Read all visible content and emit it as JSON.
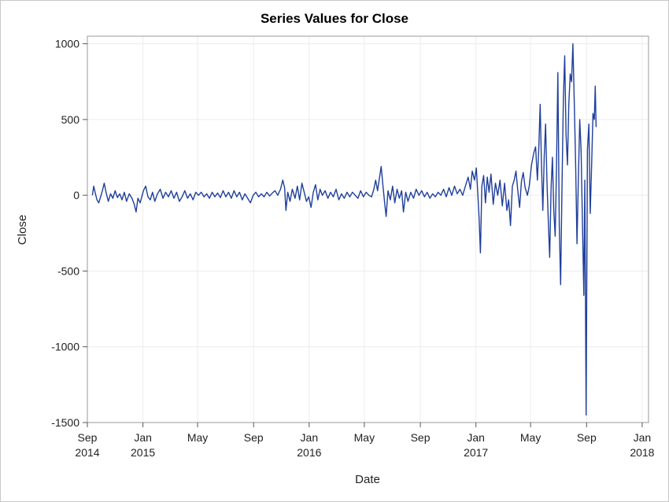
{
  "chart_data": {
    "type": "line",
    "title": "Series Values for Close",
    "xlabel": "Date",
    "ylabel": "Close",
    "ylim": [
      -1500,
      1050
    ],
    "xlim": [
      "2014-09-01",
      "2018-01-15"
    ],
    "grid": true,
    "yticks": [
      1000,
      500,
      0,
      -500,
      -1000,
      -1500
    ],
    "xticks": [
      {
        "date": "2014-09-01",
        "label": "Sep",
        "sub": "2014"
      },
      {
        "date": "2015-01-01",
        "label": "Jan",
        "sub": "2015"
      },
      {
        "date": "2015-05-01",
        "label": "May",
        "sub": ""
      },
      {
        "date": "2015-09-01",
        "label": "Sep",
        "sub": ""
      },
      {
        "date": "2016-01-01",
        "label": "Jan",
        "sub": "2016"
      },
      {
        "date": "2016-05-01",
        "label": "May",
        "sub": ""
      },
      {
        "date": "2016-09-01",
        "label": "Sep",
        "sub": ""
      },
      {
        "date": "2017-01-01",
        "label": "Jan",
        "sub": "2017"
      },
      {
        "date": "2017-05-01",
        "label": "May",
        "sub": ""
      },
      {
        "date": "2017-09-01",
        "label": "Sep",
        "sub": ""
      },
      {
        "date": "2018-01-01",
        "label": "Jan",
        "sub": "2018"
      }
    ],
    "series": [
      {
        "color": "#1f3f9a",
        "points": [
          [
            "2014-09-12",
            0
          ],
          [
            "2014-09-15",
            60
          ],
          [
            "2014-09-18",
            20
          ],
          [
            "2014-09-22",
            -30
          ],
          [
            "2014-09-26",
            -50
          ],
          [
            "2014-09-30",
            -10
          ],
          [
            "2014-10-04",
            30
          ],
          [
            "2014-10-08",
            80
          ],
          [
            "2014-10-12",
            20
          ],
          [
            "2014-10-17",
            -40
          ],
          [
            "2014-10-22",
            10
          ],
          [
            "2014-10-27",
            -20
          ],
          [
            "2014-11-01",
            30
          ],
          [
            "2014-11-06",
            -15
          ],
          [
            "2014-11-11",
            10
          ],
          [
            "2014-11-16",
            -30
          ],
          [
            "2014-11-21",
            20
          ],
          [
            "2014-11-26",
            -40
          ],
          [
            "2014-12-02",
            10
          ],
          [
            "2014-12-08",
            -20
          ],
          [
            "2014-12-13",
            -60
          ],
          [
            "2014-12-17",
            -110
          ],
          [
            "2014-12-21",
            -20
          ],
          [
            "2014-12-26",
            -50
          ],
          [
            "2015-01-02",
            30
          ],
          [
            "2015-01-07",
            60
          ],
          [
            "2015-01-12",
            -10
          ],
          [
            "2015-01-17",
            -30
          ],
          [
            "2015-01-22",
            20
          ],
          [
            "2015-01-27",
            -40
          ],
          [
            "2015-02-02",
            10
          ],
          [
            "2015-02-08",
            40
          ],
          [
            "2015-02-14",
            -20
          ],
          [
            "2015-02-20",
            20
          ],
          [
            "2015-02-26",
            -10
          ],
          [
            "2015-03-04",
            30
          ],
          [
            "2015-03-10",
            -20
          ],
          [
            "2015-03-16",
            20
          ],
          [
            "2015-03-22",
            -40
          ],
          [
            "2015-03-28",
            -10
          ],
          [
            "2015-04-03",
            30
          ],
          [
            "2015-04-09",
            -20
          ],
          [
            "2015-04-15",
            10
          ],
          [
            "2015-04-21",
            -30
          ],
          [
            "2015-04-27",
            20
          ],
          [
            "2015-05-03",
            0
          ],
          [
            "2015-05-09",
            20
          ],
          [
            "2015-05-15",
            -10
          ],
          [
            "2015-05-21",
            10
          ],
          [
            "2015-05-27",
            -20
          ],
          [
            "2015-06-02",
            20
          ],
          [
            "2015-06-08",
            -10
          ],
          [
            "2015-06-14",
            15
          ],
          [
            "2015-06-20",
            -15
          ],
          [
            "2015-06-26",
            30
          ],
          [
            "2015-07-02",
            -10
          ],
          [
            "2015-07-08",
            20
          ],
          [
            "2015-07-14",
            -20
          ],
          [
            "2015-07-20",
            30
          ],
          [
            "2015-07-26",
            -10
          ],
          [
            "2015-08-01",
            20
          ],
          [
            "2015-08-07",
            -30
          ],
          [
            "2015-08-13",
            10
          ],
          [
            "2015-08-19",
            -20
          ],
          [
            "2015-08-25",
            -50
          ],
          [
            "2015-08-31",
            0
          ],
          [
            "2015-09-06",
            20
          ],
          [
            "2015-09-12",
            -10
          ],
          [
            "2015-09-18",
            10
          ],
          [
            "2015-09-24",
            -10
          ],
          [
            "2015-09-30",
            20
          ],
          [
            "2015-10-06",
            -5
          ],
          [
            "2015-10-12",
            15
          ],
          [
            "2015-10-18",
            30
          ],
          [
            "2015-10-24",
            0
          ],
          [
            "2015-10-30",
            40
          ],
          [
            "2015-11-04",
            100
          ],
          [
            "2015-11-08",
            50
          ],
          [
            "2015-11-11",
            -100
          ],
          [
            "2015-11-15",
            20
          ],
          [
            "2015-11-20",
            -40
          ],
          [
            "2015-11-25",
            40
          ],
          [
            "2015-12-01",
            -20
          ],
          [
            "2015-12-06",
            60
          ],
          [
            "2015-12-11",
            -30
          ],
          [
            "2015-12-16",
            80
          ],
          [
            "2015-12-21",
            20
          ],
          [
            "2015-12-26",
            -40
          ],
          [
            "2015-12-31",
            -10
          ],
          [
            "2016-01-05",
            -80
          ],
          [
            "2016-01-10",
            20
          ],
          [
            "2016-01-15",
            70
          ],
          [
            "2016-01-20",
            -30
          ],
          [
            "2016-01-25",
            40
          ],
          [
            "2016-01-30",
            0
          ],
          [
            "2016-02-05",
            30
          ],
          [
            "2016-02-11",
            -20
          ],
          [
            "2016-02-17",
            20
          ],
          [
            "2016-02-23",
            -10
          ],
          [
            "2016-02-29",
            40
          ],
          [
            "2016-03-06",
            -30
          ],
          [
            "2016-03-12",
            10
          ],
          [
            "2016-03-18",
            -20
          ],
          [
            "2016-03-24",
            20
          ],
          [
            "2016-03-30",
            -10
          ],
          [
            "2016-04-05",
            20
          ],
          [
            "2016-04-11",
            0
          ],
          [
            "2016-04-17",
            -20
          ],
          [
            "2016-04-23",
            30
          ],
          [
            "2016-04-29",
            -10
          ],
          [
            "2016-05-05",
            20
          ],
          [
            "2016-05-11",
            0
          ],
          [
            "2016-05-17",
            -10
          ],
          [
            "2016-05-22",
            40
          ],
          [
            "2016-05-26",
            100
          ],
          [
            "2016-05-30",
            30
          ],
          [
            "2016-06-03",
            110
          ],
          [
            "2016-06-07",
            190
          ],
          [
            "2016-06-11",
            60
          ],
          [
            "2016-06-15",
            -60
          ],
          [
            "2016-06-18",
            -140
          ],
          [
            "2016-06-22",
            30
          ],
          [
            "2016-06-27",
            -30
          ],
          [
            "2016-07-02",
            60
          ],
          [
            "2016-07-07",
            -50
          ],
          [
            "2016-07-12",
            40
          ],
          [
            "2016-07-17",
            -20
          ],
          [
            "2016-07-22",
            30
          ],
          [
            "2016-07-26",
            -110
          ],
          [
            "2016-07-31",
            20
          ],
          [
            "2016-08-05",
            -40
          ],
          [
            "2016-08-11",
            20
          ],
          [
            "2016-08-17",
            -20
          ],
          [
            "2016-08-23",
            40
          ],
          [
            "2016-08-29",
            0
          ],
          [
            "2016-09-04",
            30
          ],
          [
            "2016-09-10",
            -10
          ],
          [
            "2016-09-16",
            20
          ],
          [
            "2016-09-22",
            -20
          ],
          [
            "2016-09-28",
            10
          ],
          [
            "2016-10-04",
            -10
          ],
          [
            "2016-10-10",
            20
          ],
          [
            "2016-10-16",
            0
          ],
          [
            "2016-10-22",
            40
          ],
          [
            "2016-10-28",
            -10
          ],
          [
            "2016-11-03",
            50
          ],
          [
            "2016-11-09",
            0
          ],
          [
            "2016-11-15",
            60
          ],
          [
            "2016-11-21",
            10
          ],
          [
            "2016-11-27",
            40
          ],
          [
            "2016-12-03",
            0
          ],
          [
            "2016-12-09",
            60
          ],
          [
            "2016-12-15",
            120
          ],
          [
            "2016-12-20",
            40
          ],
          [
            "2016-12-24",
            160
          ],
          [
            "2016-12-29",
            100
          ],
          [
            "2017-01-02",
            180
          ],
          [
            "2017-01-05",
            20
          ],
          [
            "2017-01-08",
            -150
          ],
          [
            "2017-01-11",
            -380
          ],
          [
            "2017-01-14",
            60
          ],
          [
            "2017-01-18",
            130
          ],
          [
            "2017-01-22",
            -50
          ],
          [
            "2017-01-26",
            120
          ],
          [
            "2017-01-30",
            20
          ],
          [
            "2017-02-03",
            140
          ],
          [
            "2017-02-08",
            -60
          ],
          [
            "2017-02-13",
            80
          ],
          [
            "2017-02-18",
            0
          ],
          [
            "2017-02-23",
            100
          ],
          [
            "2017-02-28",
            -70
          ],
          [
            "2017-03-05",
            80
          ],
          [
            "2017-03-10",
            -100
          ],
          [
            "2017-03-14",
            -30
          ],
          [
            "2017-03-18",
            -200
          ],
          [
            "2017-03-22",
            60
          ],
          [
            "2017-03-26",
            100
          ],
          [
            "2017-03-30",
            160
          ],
          [
            "2017-04-03",
            30
          ],
          [
            "2017-04-07",
            -80
          ],
          [
            "2017-04-11",
            90
          ],
          [
            "2017-04-15",
            150
          ],
          [
            "2017-04-19",
            50
          ],
          [
            "2017-04-24",
            0
          ],
          [
            "2017-04-28",
            60
          ],
          [
            "2017-05-03",
            200
          ],
          [
            "2017-05-08",
            280
          ],
          [
            "2017-05-12",
            320
          ],
          [
            "2017-05-16",
            100
          ],
          [
            "2017-05-19",
            300
          ],
          [
            "2017-05-22",
            600
          ],
          [
            "2017-05-25",
            200
          ],
          [
            "2017-05-28",
            -100
          ],
          [
            "2017-05-31",
            260
          ],
          [
            "2017-06-03",
            470
          ],
          [
            "2017-06-06",
            100
          ],
          [
            "2017-06-09",
            -180
          ],
          [
            "2017-06-12",
            -410
          ],
          [
            "2017-06-15",
            50
          ],
          [
            "2017-06-18",
            250
          ],
          [
            "2017-06-21",
            -100
          ],
          [
            "2017-06-24",
            -270
          ],
          [
            "2017-06-27",
            200
          ],
          [
            "2017-06-30",
            810
          ],
          [
            "2017-07-03",
            -200
          ],
          [
            "2017-07-06",
            -590
          ],
          [
            "2017-07-09",
            40
          ],
          [
            "2017-07-12",
            640
          ],
          [
            "2017-07-15",
            920
          ],
          [
            "2017-07-18",
            400
          ],
          [
            "2017-07-21",
            200
          ],
          [
            "2017-07-24",
            600
          ],
          [
            "2017-07-27",
            800
          ],
          [
            "2017-07-30",
            750
          ],
          [
            "2017-08-02",
            1000
          ],
          [
            "2017-08-05",
            600
          ],
          [
            "2017-08-08",
            200
          ],
          [
            "2017-08-11",
            -320
          ],
          [
            "2017-08-14",
            120
          ],
          [
            "2017-08-17",
            500
          ],
          [
            "2017-08-20",
            300
          ],
          [
            "2017-08-23",
            -200
          ],
          [
            "2017-08-26",
            -660
          ],
          [
            "2017-08-28",
            100
          ],
          [
            "2017-08-31",
            -1450
          ],
          [
            "2017-09-03",
            300
          ],
          [
            "2017-09-06",
            470
          ],
          [
            "2017-09-09",
            -120
          ],
          [
            "2017-09-12",
            200
          ],
          [
            "2017-09-15",
            540
          ],
          [
            "2017-09-18",
            500
          ],
          [
            "2017-09-20",
            720
          ],
          [
            "2017-09-22",
            450
          ]
        ]
      }
    ]
  }
}
